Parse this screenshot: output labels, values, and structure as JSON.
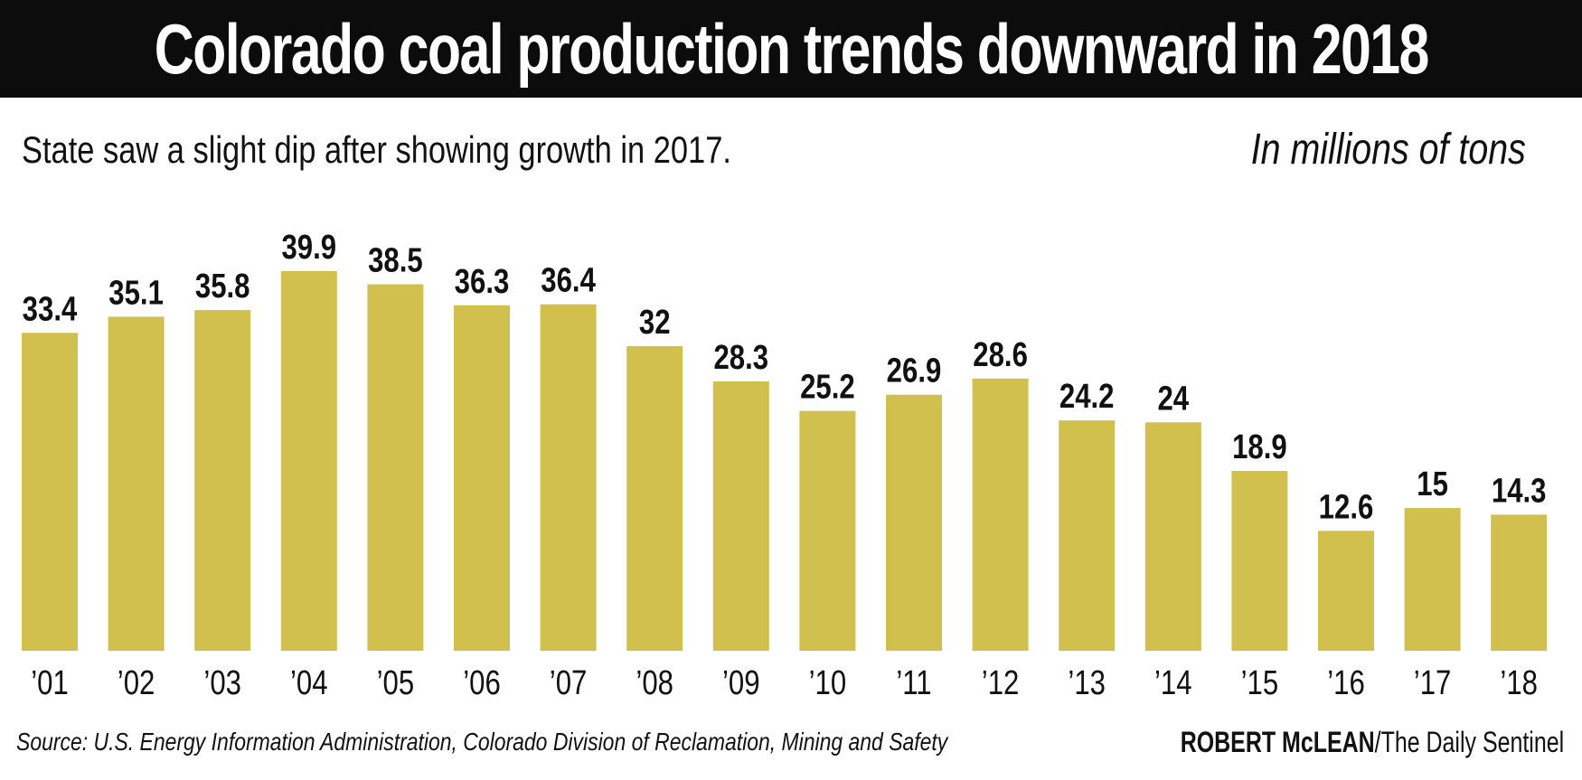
{
  "title": "Colorado coal production trends downward in 2018",
  "subtitle": "State saw a slight dip after showing growth in 2017.",
  "units_note": "In millions of tons",
  "footer": {
    "source": "Source: U.S. Energy Information Administration, Colorado Division of Reclamation, Mining and Safety",
    "author": "ROBERT McLEAN",
    "publication": "/The Daily Sentinel"
  },
  "colors": {
    "bar": "#d1c04e",
    "title_bg": "#0c0c0c",
    "text": "#111111"
  },
  "chart_data": {
    "type": "bar",
    "categories": [
      "’01",
      "’02",
      "’03",
      "’04",
      "’05",
      "’06",
      "’07",
      "’08",
      "’09",
      "’10",
      "’11",
      "’12",
      "’13",
      "’14",
      "’15",
      "’16",
      "’17",
      "’18"
    ],
    "values": [
      33.4,
      35.1,
      35.8,
      39.9,
      38.5,
      36.3,
      36.4,
      32,
      28.3,
      25.2,
      26.9,
      28.6,
      24.2,
      24,
      18.9,
      12.6,
      15,
      14.3
    ],
    "value_labels": [
      "33.4",
      "35.1",
      "35.8",
      "39.9",
      "38.5",
      "36.3",
      "36.4",
      "32",
      "28.3",
      "25.2",
      "26.9",
      "28.6",
      "24.2",
      "24",
      "18.9",
      "12.6",
      "15",
      "14.3"
    ],
    "title": "Colorado coal production trends downward in 2018",
    "xlabel": "",
    "ylabel": "",
    "ylim": [
      0,
      40
    ],
    "grid": false,
    "legend": "none"
  }
}
